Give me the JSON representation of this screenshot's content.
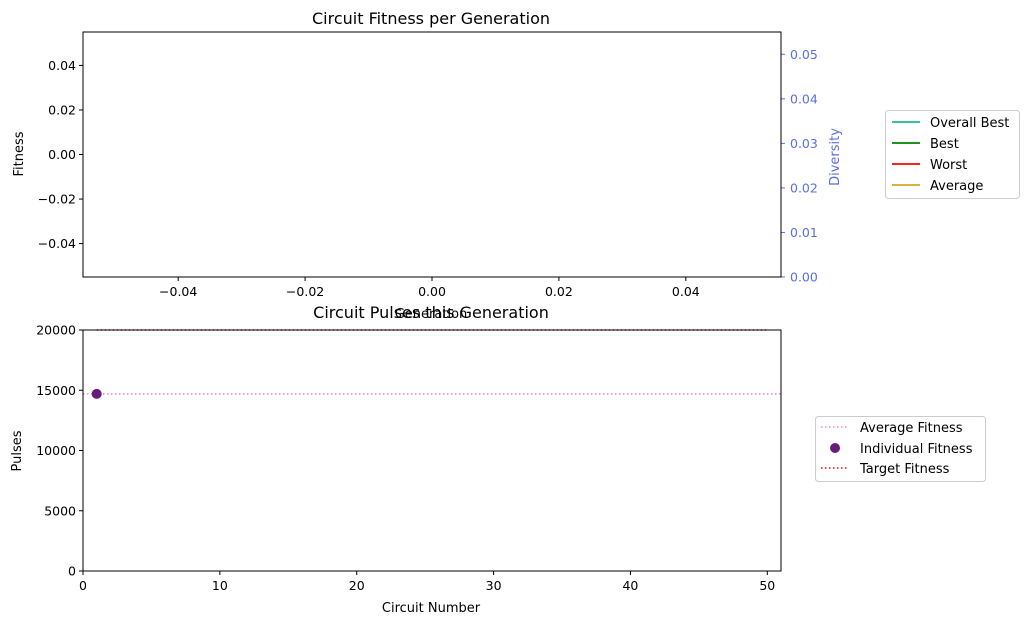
{
  "chart_data": [
    {
      "type": "line",
      "title": "Circuit Fitness per Generation",
      "xlabel": "Generation",
      "ylabel": "Fitness",
      "y2label": "Diversity",
      "xlim": [
        -0.055,
        0.055
      ],
      "ylim": [
        -0.055,
        0.055
      ],
      "y2lim": [
        0,
        0.055
      ],
      "xticks": [
        "−0.04",
        "−0.02",
        "0.00",
        "0.02",
        "0.04"
      ],
      "xtick_values": [
        -0.04,
        -0.02,
        0,
        0.02,
        0.04
      ],
      "yticks": [
        "−0.04",
        "−0.02",
        "0.00",
        "0.02",
        "0.04"
      ],
      "ytick_values": [
        -0.04,
        -0.02,
        0,
        0.02,
        0.04
      ],
      "y2ticks": [
        "0.00",
        "0.01",
        "0.02",
        "0.03",
        "0.04",
        "0.05"
      ],
      "y2tick_values": [
        0,
        0.01,
        0.02,
        0.03,
        0.04,
        0.05
      ],
      "diversity_color": "#5a6fe0",
      "legend_placement": "right",
      "series": [
        {
          "name": "Overall Best",
          "color": "#1dba8c",
          "x": [],
          "y": []
        },
        {
          "name": "Best",
          "color": "#008000",
          "x": [],
          "y": []
        },
        {
          "name": "Worst",
          "color": "#ff0000",
          "x": [],
          "y": []
        },
        {
          "name": "Average",
          "color": "#daa520",
          "x": [],
          "y": []
        }
      ]
    },
    {
      "type": "scatter",
      "title": "Circuit Pulses this Generation",
      "xlabel": "Circuit Number",
      "ylabel": "Pulses",
      "xlim": [
        0,
        51
      ],
      "ylim": [
        0,
        20000
      ],
      "xticks": [
        "0",
        "10",
        "20",
        "30",
        "40",
        "50"
      ],
      "xtick_values": [
        0,
        10,
        20,
        30,
        40,
        50
      ],
      "yticks": [
        "0",
        "5000",
        "10000",
        "15000",
        "20000"
      ],
      "ytick_values": [
        0,
        5000,
        10000,
        15000,
        20000
      ],
      "legend_placement": "right",
      "average_fitness": {
        "name": "Average Fitness",
        "value": 14700,
        "color": "#ee82ee"
      },
      "individual_fitness": {
        "name": "Individual Fitness",
        "color": "#6a1a7a",
        "points": [
          {
            "x": 1,
            "y": 14700
          }
        ]
      },
      "target_fitness": {
        "name": "Target Fitness",
        "value": 20000,
        "x_range": [
          1,
          50
        ],
        "color": "#ff0000"
      }
    }
  ]
}
